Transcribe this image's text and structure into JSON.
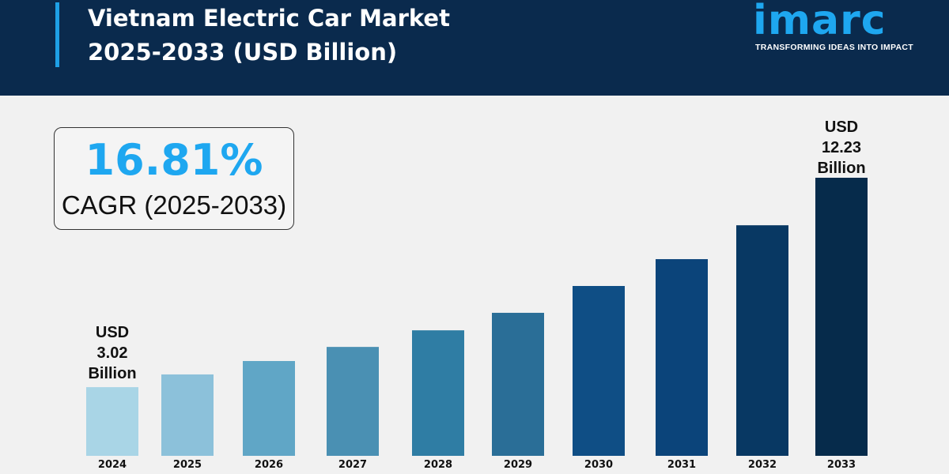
{
  "header": {
    "title_line1": "Vietnam Electric Car Market",
    "title_line2": "2025-2033 (USD Billion)",
    "logo": "imarc",
    "tagline": "TRANSFORMING IDEAS INTO IMPACT"
  },
  "cagr": {
    "value": "16.81%",
    "label": "CAGR (2025-2033)"
  },
  "annotations": {
    "start": [
      "USD",
      "3.02",
      "Billion"
    ],
    "end": [
      "USD",
      "12.23",
      "Billion"
    ]
  },
  "chart_data": {
    "type": "bar",
    "title": "Vietnam Electric Car Market 2025-2033 (USD Billion)",
    "categories": [
      "2024",
      "2025",
      "2026",
      "2027",
      "2028",
      "2029",
      "2030",
      "2031",
      "2032",
      "2033"
    ],
    "values": [
      3.02,
      3.58,
      4.17,
      4.79,
      5.52,
      6.29,
      7.47,
      8.65,
      10.14,
      12.23
    ],
    "colors": [
      "#a9d5e6",
      "#8cc1da",
      "#60a6c6",
      "#4a90b3",
      "#2f7da4",
      "#2a6e97",
      "#0f4e85",
      "#0b447a",
      "#083863",
      "#062b4b"
    ],
    "ylim": [
      0,
      12.23
    ],
    "grid": false,
    "legend": "none"
  }
}
